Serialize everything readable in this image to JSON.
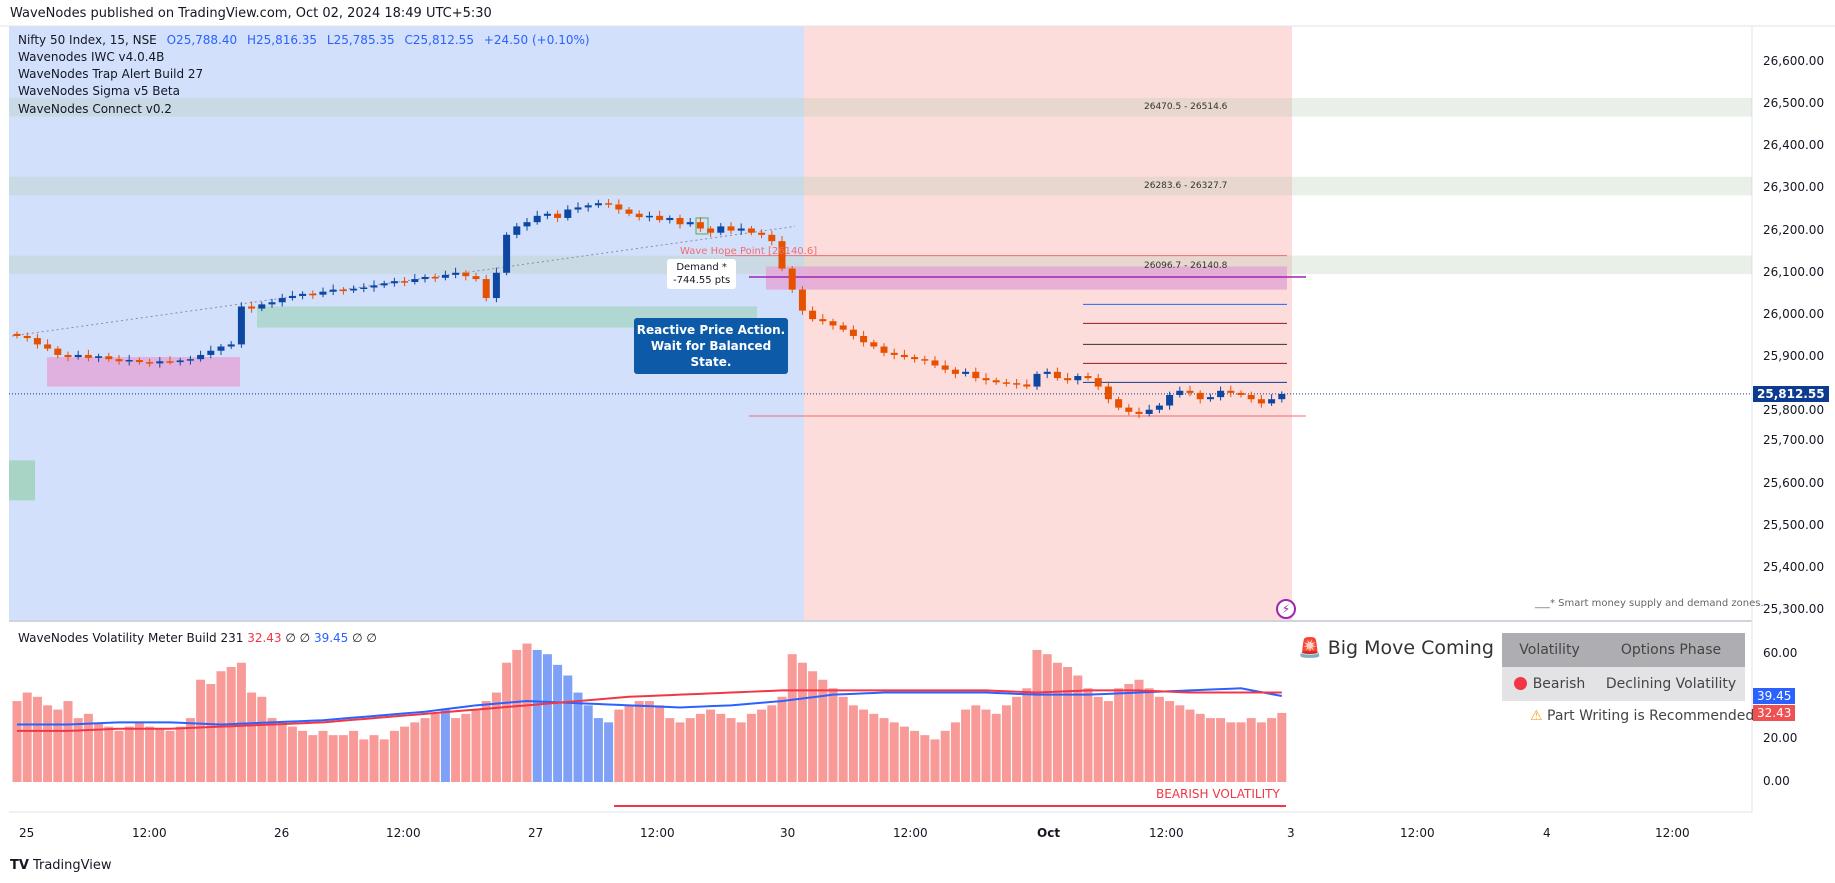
{
  "header": {
    "title": "WaveNodes published on TradingView.com, Oct 02, 2024 18:49 UTC+5:30"
  },
  "legend": {
    "symbol": "Nifty 50 Index, 15, NSE",
    "open": "O25,788.40",
    "high": "H25,816.35",
    "low": "L25,785.35",
    "close": "C25,812.55",
    "change": "+24.50 (+0.10%)",
    "indicators": [
      "Wavenodes IWC v4.0.4B",
      "WaveNodes Trap Alert Build 27",
      "WaveNodes Sigma v5 Beta",
      "WaveNodes Connect v0.2"
    ]
  },
  "annotations": {
    "wave_hope": "Wave Hope Point [26140.6]",
    "demand_title": "Demand *",
    "demand_pts": "-744.55 pts",
    "callout_1": "Reactive Price Action.",
    "callout_2": "Wait for Balanced State.",
    "zones": [
      "26470.5 - 26514.6",
      "26283.6 - 26327.7",
      "26096.7 - 26140.8"
    ],
    "note": "___* Smart money supply and demand zones."
  },
  "price_axis": {
    "labels": [
      "26,600.00",
      "26,500.00",
      "26,400.00",
      "26,300.00",
      "26,200.00",
      "26,100.00",
      "26,000.00",
      "25,900.00",
      "25,800.00",
      "25,700.00",
      "25,600.00",
      "25,500.00",
      "25,400.00",
      "25,300.00"
    ],
    "current": "25,812.55"
  },
  "volatility": {
    "legend_name": "WaveNodes Volatility Meter Build 231",
    "legend_v1": "32.43",
    "legend_na1": "∅",
    "legend_na2": "∅",
    "legend_v2": "39.45",
    "legend_na3": "∅",
    "legend_na4": "∅",
    "axis_labels": [
      "60.00",
      "40.00",
      "20.00",
      "0.00"
    ],
    "tag_blue": "39.45",
    "tag_red": "32.43",
    "signal": "Big Move Coming",
    "table_headers": [
      "Volatility",
      "Options Phase"
    ],
    "table_row": [
      "Bearish",
      "Declining Volatility"
    ],
    "advice": "Part Writing is Recommended",
    "bearish_label": "BEARISH VOLATILITY"
  },
  "time_axis": [
    "25",
    "12:00",
    "26",
    "12:00",
    "27",
    "12:00",
    "30",
    "12:00",
    "Oct",
    "12:00",
    "3",
    "12:00",
    "4",
    "12:00"
  ],
  "footer": {
    "brand": "TradingView"
  },
  "colors": {
    "up": "#0d47a1",
    "down": "#e65100",
    "bg_blue": "#d3e0fc",
    "bg_red": "#fddcdc",
    "vol_red": "#f89a98",
    "vol_blue": "#7ea1f7"
  },
  "chart_data": {
    "type": "candlestick",
    "title": "Nifty 50 Index, 15, NSE",
    "ylim": [
      25250,
      26650
    ],
    "closes": [
      25950,
      25945,
      25930,
      25920,
      25905,
      25900,
      25905,
      25898,
      25902,
      25895,
      25890,
      25893,
      25888,
      25885,
      25890,
      25888,
      25892,
      25895,
      25905,
      25915,
      25925,
      25930,
      26020,
      26015,
      26025,
      26030,
      26040,
      26045,
      26050,
      26048,
      26055,
      26060,
      26058,
      26062,
      26065,
      26070,
      26075,
      26080,
      26078,
      26085,
      26090,
      26088,
      26095,
      26100,
      26092,
      26085,
      26040,
      26100,
      26190,
      26210,
      26220,
      26235,
      26240,
      26230,
      26250,
      26255,
      26260,
      26265,
      26262,
      26250,
      26240,
      26232,
      26235,
      26225,
      26230,
      26215,
      26220,
      26205,
      26195,
      26210,
      26200,
      26205,
      26195,
      26190,
      26175,
      26110,
      26060,
      26010,
      25990,
      25985,
      25975,
      25965,
      25950,
      25935,
      25925,
      25910,
      25905,
      25900,
      25895,
      25892,
      25880,
      25870,
      25860,
      25865,
      25850,
      25845,
      25840,
      25838,
      25835,
      25830,
      25860,
      25865,
      25850,
      25845,
      25855,
      25850,
      25830,
      25800,
      25780,
      25770,
      25765,
      25775,
      25785,
      25810,
      25820,
      25815,
      25800,
      25805,
      25820,
      25815,
      25810,
      25800,
      25790,
      25800,
      25812.55
    ],
    "zones": [
      [
        26470.5,
        26514.6
      ],
      [
        26283.6,
        26327.7
      ],
      [
        26096.7,
        26140.8
      ]
    ],
    "current_price": 25812.55,
    "volatility_hist": [
      38,
      42,
      40,
      36,
      34,
      38,
      30,
      32,
      28,
      26,
      24,
      26,
      28,
      26,
      25,
      24,
      26,
      30,
      48,
      46,
      52,
      54,
      56,
      42,
      40,
      30,
      28,
      26,
      24,
      22,
      24,
      22,
      22,
      24,
      20,
      22,
      20,
      24,
      26,
      28,
      30,
      32,
      34,
      30,
      32,
      34,
      38,
      42,
      56,
      62,
      65,
      62,
      60,
      55,
      50,
      42,
      36,
      30,
      28,
      34,
      36,
      38,
      38,
      36,
      30,
      28,
      30,
      32,
      34,
      32,
      30,
      28,
      32,
      34,
      36,
      40,
      60,
      56,
      52,
      48,
      44,
      40,
      36,
      34,
      32,
      30,
      28,
      26,
      24,
      22,
      20,
      24,
      28,
      34,
      36,
      34,
      32,
      36,
      40,
      44,
      62,
      60,
      56,
      54,
      50,
      44,
      40,
      38,
      44,
      46,
      48,
      44,
      40,
      38,
      36,
      34,
      32,
      30,
      30,
      28,
      28,
      30,
      28,
      30,
      32.43
    ],
    "volatility_blue_bars": [
      42,
      51,
      52,
      53,
      54,
      55,
      56,
      57,
      58
    ],
    "red_line_every5": [
      24,
      24,
      25,
      25,
      26,
      27,
      28,
      30,
      32,
      34,
      36,
      38,
      40,
      41,
      42,
      43,
      43,
      43,
      43,
      43,
      42,
      43,
      43,
      42,
      42,
      42
    ],
    "blue_line_every5": [
      27,
      27,
      28,
      28,
      27,
      28,
      29,
      31,
      33,
      36,
      38,
      37,
      36,
      35,
      36,
      38,
      41,
      42,
      42,
      42,
      41,
      41,
      42,
      43,
      44,
      39.45
    ]
  }
}
